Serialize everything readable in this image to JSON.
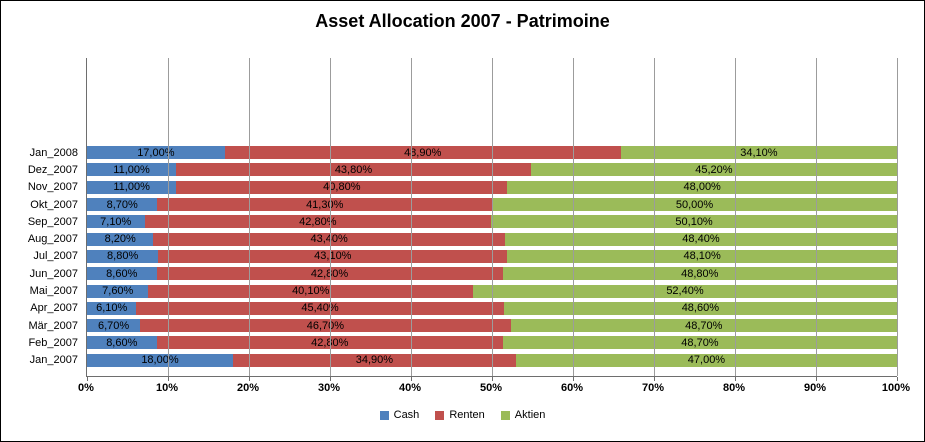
{
  "title": "Asset Allocation 2007 - Patrimoine",
  "chart_data": {
    "type": "bar",
    "orientation": "horizontal",
    "stacked": true,
    "grid": true,
    "xlim": [
      0,
      100
    ],
    "x_ticks": [
      "0%",
      "10%",
      "20%",
      "30%",
      "40%",
      "50%",
      "60%",
      "70%",
      "80%",
      "90%",
      "100%"
    ],
    "categories": [
      "Jan_2008",
      "Dez_2007",
      "Nov_2007",
      "Okt_2007",
      "Sep_2007",
      "Aug_2007",
      "Jul_2007",
      "Jun_2007",
      "Mai_2007",
      "Apr_2007",
      "Mär_2007",
      "Feb_2007",
      "Jan_2007"
    ],
    "series": [
      {
        "name": "Cash",
        "color": "#4F81BD",
        "values": [
          17.0,
          11.0,
          11.0,
          8.7,
          7.1,
          8.2,
          8.8,
          8.6,
          7.6,
          6.1,
          6.7,
          8.6,
          18.0
        ],
        "labels": [
          "17,00%",
          "11,00%",
          "11,00%",
          "8,70%",
          "7,10%",
          "8,20%",
          "8,80%",
          "8,60%",
          "7,60%",
          "6,10%",
          "6,70%",
          "8,60%",
          "18,00%"
        ]
      },
      {
        "name": "Renten",
        "color": "#C0504D",
        "values": [
          48.9,
          43.8,
          40.8,
          41.3,
          42.8,
          43.4,
          43.1,
          42.8,
          40.1,
          45.4,
          46.7,
          42.8,
          34.9
        ],
        "labels": [
          "48,90%",
          "43,80%",
          "40,80%",
          "41,30%",
          "42,80%",
          "43,40%",
          "43,10%",
          "42,80%",
          "40,10%",
          "45,40%",
          "46,70%",
          "42,80%",
          "34,90%"
        ]
      },
      {
        "name": "Aktien",
        "color": "#9BBB59",
        "values": [
          34.1,
          45.2,
          48.0,
          50.0,
          50.1,
          48.4,
          48.1,
          48.8,
          52.4,
          48.6,
          48.7,
          48.7,
          47.0
        ],
        "labels": [
          "34,10%",
          "45,20%",
          "48,00%",
          "50,00%",
          "50,10%",
          "48,40%",
          "48,10%",
          "48,80%",
          "52,40%",
          "48,60%",
          "48,70%",
          "48,70%",
          "47,00%"
        ]
      }
    ],
    "legend": [
      {
        "label": "Cash",
        "color": "#4F81BD"
      },
      {
        "label": "Renten",
        "color": "#C0504D"
      },
      {
        "label": "Aktien",
        "color": "#9BBB59"
      }
    ],
    "legend_position": "bottom"
  }
}
